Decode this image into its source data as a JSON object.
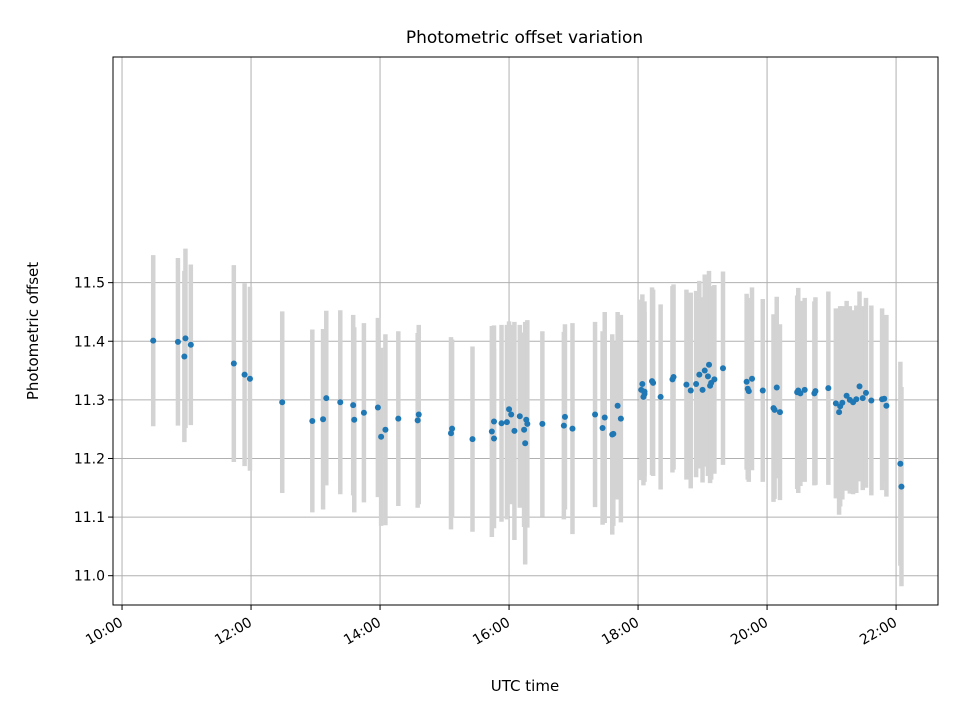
{
  "chart_data": {
    "type": "scatter",
    "title": "Photometric offset variation",
    "xlabel": "UTC time",
    "ylabel": "Photometric offset",
    "x_unit": "hours UTC",
    "xlim": [
      9.86,
      22.65
    ],
    "ylim": [
      10.95,
      11.885
    ],
    "x_ticks": [
      "10:00",
      "12:00",
      "14:00",
      "16:00",
      "18:00",
      "20:00",
      "22:00"
    ],
    "y_ticks": [
      "11.0",
      "11.1",
      "11.2",
      "11.3",
      "11.4",
      "11.5"
    ],
    "grid": true,
    "colors": {
      "point": "#1f77b4",
      "errorbar": "#d3d3d3",
      "grid": "#b0b0b0"
    },
    "series": [
      {
        "x": [
          "10:29",
          "10:52",
          "10:58",
          "10:59",
          "11:04",
          "11:44",
          "11:54",
          "11:59",
          "12:29",
          "12:57",
          "13:07",
          "13:10",
          "13:23",
          "13:35",
          "13:36",
          "13:45",
          "13:58",
          "14:01",
          "14:05",
          "14:17",
          "14:35",
          "14:36",
          "15:06",
          "15:07",
          "15:26",
          "15:44",
          "15:46",
          "15:46",
          "15:53",
          "15:58",
          "16:00",
          "16:02",
          "16:05",
          "16:10",
          "16:14",
          "16:15",
          "16:16",
          "16:17",
          "16:31",
          "16:51",
          "16:52",
          "16:59",
          "17:20",
          "17:27",
          "17:29",
          "17:36",
          "17:37",
          "17:41",
          "17:44",
          "18:03",
          "18:04",
          "18:05",
          "18:06",
          "18:06",
          "18:13",
          "18:14",
          "18:21",
          "18:32",
          "18:33",
          "18:45",
          "18:49",
          "18:54",
          "18:57",
          "19:00",
          "19:02",
          "19:05",
          "19:06",
          "19:07",
          "19:08",
          "19:11",
          "19:19",
          "19:41",
          "19:42",
          "19:43",
          "19:46",
          "19:56",
          "20:06",
          "20:07",
          "20:09",
          "20:12",
          "20:28",
          "20:29",
          "20:31",
          "20:35",
          "20:44",
          "20:45",
          "20:57",
          "21:04",
          "21:07",
          "21:08",
          "21:10",
          "21:14",
          "21:17",
          "21:20",
          "21:23",
          "21:26",
          "21:29",
          "21:32",
          "21:37",
          "21:47",
          "21:49",
          "21:51",
          "22:04",
          "22:05"
        ],
        "y": [
          11.401,
          11.399,
          11.374,
          11.405,
          11.394,
          11.362,
          11.343,
          11.336,
          11.296,
          11.264,
          11.267,
          11.303,
          11.296,
          11.291,
          11.266,
          11.278,
          11.287,
          11.237,
          11.249,
          11.268,
          11.265,
          11.275,
          11.243,
          11.251,
          11.233,
          11.246,
          11.263,
          11.234,
          11.26,
          11.262,
          11.284,
          11.275,
          11.247,
          11.272,
          11.249,
          11.226,
          11.266,
          11.259,
          11.259,
          11.256,
          11.271,
          11.251,
          11.275,
          11.252,
          11.27,
          11.241,
          11.242,
          11.29,
          11.268,
          11.317,
          11.327,
          11.305,
          11.31,
          11.314,
          11.332,
          11.329,
          11.305,
          11.335,
          11.339,
          11.326,
          11.316,
          11.327,
          11.343,
          11.317,
          11.35,
          11.34,
          11.36,
          11.324,
          11.329,
          11.335,
          11.354,
          11.331,
          11.319,
          11.315,
          11.336,
          11.316,
          11.286,
          11.283,
          11.321,
          11.279,
          11.313,
          11.316,
          11.311,
          11.317,
          11.311,
          11.315,
          11.32,
          11.294,
          11.279,
          11.289,
          11.295,
          11.307,
          11.3,
          11.296,
          11.301,
          11.323,
          11.303,
          11.312,
          11.299,
          11.301,
          11.302,
          11.29,
          11.191,
          11.152
        ],
        "err": [
          0.146,
          0.143,
          0.146,
          0.153,
          0.137,
          0.168,
          0.156,
          0.157,
          0.155,
          0.156,
          0.154,
          0.149,
          0.157,
          0.154,
          0.158,
          0.153,
          0.153,
          0.152,
          0.163,
          0.149,
          0.149,
          0.153,
          0.164,
          0.152,
          0.158,
          0.18,
          0.164,
          0.153,
          0.168,
          0.166,
          0.15,
          0.153,
          0.186,
          0.156,
          0.166,
          0.207,
          0.159,
          0.177,
          0.158,
          0.16,
          0.158,
          0.18,
          0.158,
          0.165,
          0.18,
          0.171,
          0.157,
          0.16,
          0.177,
          0.154,
          0.153,
          0.151,
          0.14,
          0.154,
          0.16,
          0.159,
          0.158,
          0.159,
          0.158,
          0.162,
          0.167,
          0.159,
          0.16,
          0.158,
          0.164,
          0.17,
          0.16,
          0.166,
          0.165,
          0.161,
          0.165,
          0.15,
          0.155,
          0.155,
          0.156,
          0.156,
          0.16,
          0.152,
          0.155,
          0.15,
          0.165,
          0.175,
          0.158,
          0.157,
          0.157,
          0.16,
          0.165,
          0.162,
          0.175,
          0.171,
          0.165,
          0.162,
          0.16,
          0.157,
          0.16,
          0.162,
          0.157,
          0.162,
          0.162,
          0.155,
          0.142,
          0.155,
          0.174,
          0.17
        ]
      }
    ]
  }
}
